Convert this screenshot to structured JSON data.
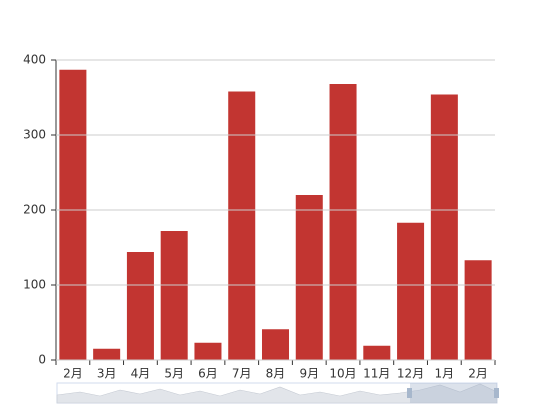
{
  "chart_data": {
    "type": "bar",
    "categories": [
      "2月",
      "3月",
      "4月",
      "5月",
      "6月",
      "7月",
      "8月",
      "9月",
      "10月",
      "11月",
      "12月",
      "1月",
      "2月"
    ],
    "values": [
      387,
      15,
      144,
      172,
      23,
      358,
      41,
      220,
      368,
      19,
      183,
      354,
      133
    ],
    "color": "#c23531",
    "ylim": [
      0,
      400
    ],
    "yticks": [
      0,
      100,
      200,
      300,
      400
    ],
    "grid": true
  }
}
